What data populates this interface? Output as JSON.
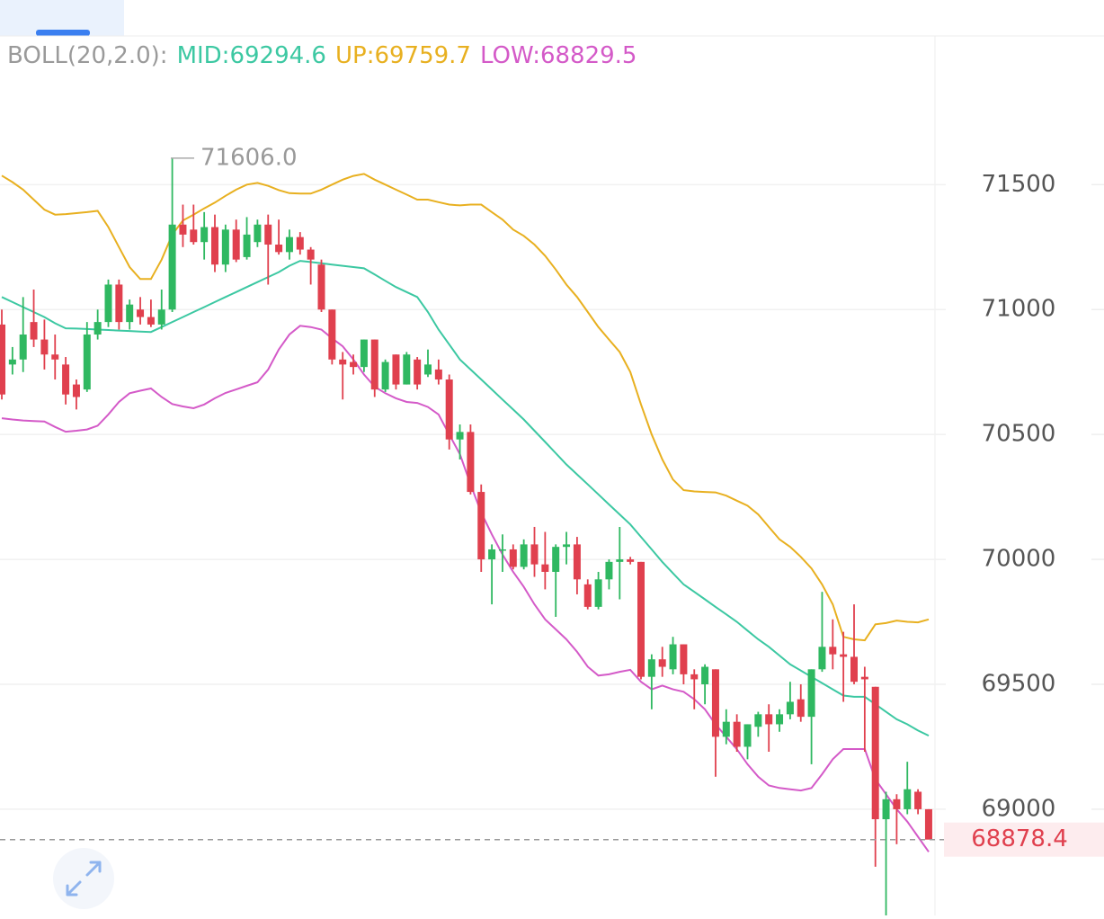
{
  "chart_data": {
    "type": "candlestick",
    "indicator": "BOLL(20,2.0):",
    "up_color": "#2fb861",
    "down_color": "#e0404e",
    "candles": {
      "open": [
        70940,
        70780,
        70800,
        70950,
        70880,
        70820,
        70780,
        70700,
        70680,
        70900,
        70950,
        71100,
        70950,
        71000,
        70970,
        70940,
        71000,
        71340,
        71320,
        71270,
        71330,
        71180,
        71320,
        71210,
        71270,
        71340,
        71260,
        71230,
        71290,
        71240,
        71180,
        71000,
        70800,
        70790,
        70770,
        70880,
        70680,
        70820,
        70700,
        70800,
        70740,
        70760,
        70720,
        70480,
        70510,
        70270,
        70000,
        70040,
        70040,
        69970,
        70060,
        69980,
        69950,
        70050,
        70060,
        69900,
        69810,
        69920,
        69990,
        70000,
        69990,
        69530,
        69600,
        69560,
        69660,
        69540,
        69500,
        69560,
        69290,
        69350,
        69250,
        69330,
        69380,
        69340,
        69380,
        69440,
        69370,
        69560,
        69650,
        69620,
        69610,
        69530,
        69490,
        68960,
        69040,
        69000,
        69070,
        69000
      ],
      "high": [
        71000,
        70850,
        71050,
        71080,
        70960,
        70900,
        70810,
        70720,
        70950,
        71000,
        71120,
        71120,
        71040,
        71050,
        71040,
        71080,
        71606,
        71420,
        71420,
        71390,
        71380,
        71340,
        71360,
        71370,
        71360,
        71380,
        71360,
        71320,
        71310,
        71250,
        71200,
        71000,
        70830,
        70820,
        70880,
        70880,
        70800,
        70820,
        70830,
        70810,
        70840,
        70800,
        70740,
        70540,
        70540,
        70300,
        70060,
        70100,
        70060,
        70080,
        70130,
        70110,
        70060,
        70110,
        70090,
        69920,
        69950,
        70000,
        70130,
        70010,
        69990,
        69620,
        69650,
        69690,
        69660,
        69560,
        69580,
        69560,
        69400,
        69380,
        69340,
        69390,
        69420,
        69400,
        69510,
        69500,
        69560,
        69870,
        69760,
        69710,
        69820,
        69570,
        69490,
        69070,
        69060,
        69190,
        69080,
        69000
      ],
      "low": [
        70640,
        70740,
        70750,
        70850,
        70760,
        70720,
        70620,
        70600,
        70670,
        70880,
        70930,
        70920,
        70920,
        70940,
        70930,
        70920,
        70990,
        71250,
        71260,
        71200,
        71150,
        71150,
        71190,
        71200,
        71250,
        71100,
        71220,
        71200,
        71220,
        71100,
        70990,
        70780,
        70640,
        70740,
        70750,
        70650,
        70670,
        70680,
        70700,
        70680,
        70730,
        70700,
        70440,
        70400,
        70260,
        69950,
        69820,
        69950,
        69960,
        69960,
        69930,
        69880,
        69770,
        69980,
        69860,
        69800,
        69800,
        69880,
        69840,
        69980,
        69520,
        69400,
        69530,
        69540,
        69500,
        69400,
        69420,
        69130,
        69260,
        69230,
        69200,
        69290,
        69230,
        69310,
        69360,
        69350,
        69180,
        69550,
        69560,
        69430,
        69500,
        69230,
        68770,
        68550,
        68860,
        68980,
        68980,
        68880
      ],
      "close": [
        70660,
        70800,
        70900,
        70880,
        70820,
        70800,
        70660,
        70650,
        70900,
        70950,
        71100,
        70950,
        71020,
        70970,
        70940,
        71000,
        71340,
        71300,
        71270,
        71330,
        71180,
        71320,
        71200,
        71300,
        71340,
        71260,
        71230,
        71290,
        71240,
        71200,
        71000,
        70800,
        70780,
        70770,
        70880,
        70680,
        70790,
        70700,
        70820,
        70700,
        70780,
        70720,
        70480,
        70510,
        70270,
        70000,
        70040,
        70040,
        69970,
        70060,
        69980,
        69950,
        70050,
        70060,
        69920,
        69810,
        69920,
        69990,
        70000,
        69990,
        69530,
        69600,
        69570,
        69660,
        69540,
        69520,
        69570,
        69290,
        69350,
        69250,
        69340,
        69380,
        69340,
        69380,
        69430,
        69370,
        69560,
        69650,
        69620,
        69610,
        69510,
        69520,
        68960,
        69040,
        69000,
        69080,
        69000,
        68878.4
      ]
    },
    "series": [
      {
        "name": "MID:",
        "color": "#3cc8a2",
        "values": [
          71050,
          71030,
          71010,
          70990,
          70970,
          70945,
          70925,
          70924,
          70922,
          70920,
          70918,
          70916,
          70914,
          70912,
          70910,
          70930,
          70950,
          70970,
          70990,
          71010,
          71030,
          71050,
          71070,
          71090,
          71110,
          71130,
          71150,
          71175,
          71195,
          71190,
          71185,
          71180,
          71175,
          71170,
          71165,
          71140,
          71115,
          71090,
          71070,
          71050,
          70990,
          70920,
          70860,
          70800,
          70760,
          70720,
          70680,
          70640,
          70600,
          70560,
          70515,
          70470,
          70425,
          70380,
          70340,
          70300,
          70260,
          70220,
          70180,
          70140,
          70090,
          70040,
          69990,
          69945,
          69900,
          69870,
          69840,
          69810,
          69780,
          69750,
          69715,
          69680,
          69650,
          69615,
          69580,
          69555,
          69530,
          69505,
          69480,
          69455,
          69450,
          69450,
          69420,
          69390,
          69360,
          69340,
          69315,
          69294.6
        ]
      },
      {
        "name": "UP:",
        "color": "#e8b020",
        "values": [
          71536,
          71510,
          71480,
          71440,
          71400,
          71380,
          71382,
          71386,
          71390,
          71395,
          71330,
          71250,
          71170,
          71122,
          71122,
          71200,
          71300,
          71356,
          71380,
          71405,
          71428,
          71455,
          71480,
          71500,
          71507,
          71495,
          71478,
          71466,
          71464,
          71464,
          71480,
          71500,
          71520,
          71535,
          71543,
          71520,
          71500,
          71480,
          71460,
          71440,
          71440,
          71430,
          71420,
          71417,
          71420,
          71420,
          71390,
          71360,
          71320,
          71295,
          71260,
          71215,
          71160,
          71100,
          71050,
          70990,
          70930,
          70880,
          70830,
          70750,
          70620,
          70500,
          70400,
          70320,
          70277,
          70272,
          70270,
          70268,
          70255,
          70235,
          70215,
          70180,
          70130,
          70080,
          70050,
          70010,
          69964,
          69900,
          69820,
          69690,
          69680,
          69676,
          69740,
          69745,
          69755,
          69750,
          69748,
          69759.7
        ]
      },
      {
        "name": "LOW:",
        "color": "#d45ac8",
        "values": [
          70565,
          70560,
          70556,
          70554,
          70552,
          70530,
          70511,
          70515,
          70520,
          70535,
          70580,
          70630,
          70665,
          70675,
          70684,
          70650,
          70622,
          70612,
          70605,
          70620,
          70645,
          70666,
          70680,
          70695,
          70709,
          70760,
          70840,
          70900,
          70935,
          70930,
          70920,
          70885,
          70853,
          70800,
          70740,
          70691,
          70665,
          70645,
          70630,
          70626,
          70610,
          70580,
          70500,
          70421,
          70300,
          70187,
          70100,
          70020,
          69950,
          69890,
          69820,
          69760,
          69720,
          69680,
          69630,
          69570,
          69535,
          69540,
          69550,
          69558,
          69510,
          69480,
          69495,
          69480,
          69470,
          69440,
          69400,
          69340,
          69290,
          69240,
          69180,
          69130,
          69095,
          69085,
          69080,
          69075,
          69085,
          69140,
          69200,
          69241,
          69241,
          69241,
          69120,
          69060,
          69000,
          68950,
          68890,
          68829.5
        ]
      }
    ],
    "high_label": {
      "value": 71606,
      "label": "71606.0"
    },
    "last_price": 68878.4,
    "ylim": [
      68575,
      72095
    ],
    "yticks": [
      69000,
      69500,
      70000,
      70500,
      71000,
      71500
    ],
    "grid": true
  }
}
